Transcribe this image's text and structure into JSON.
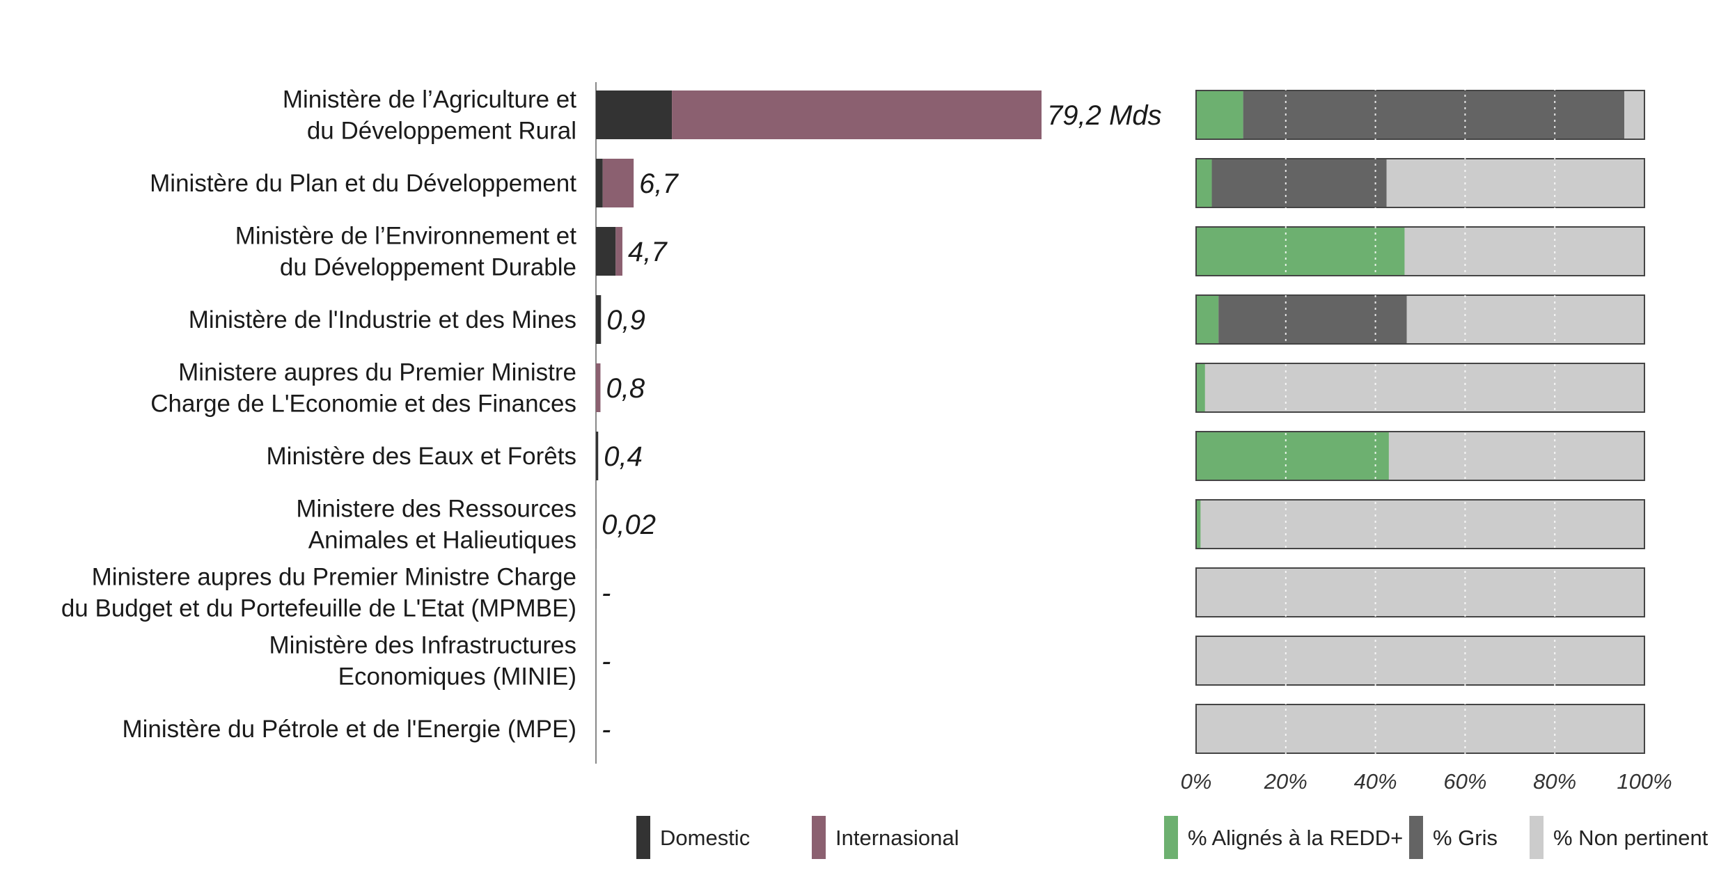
{
  "chart_data": [
    {
      "type": "bar",
      "orientation": "horizontal",
      "stacked": true,
      "categories": [
        [
          "Ministère de l’Agriculture et",
          "du Développement Rural"
        ],
        [
          "Ministère du Plan et du Développement"
        ],
        [
          "Ministère de l’Environnement et",
          "du Développement Durable"
        ],
        [
          "Ministère de l'Industrie et des Mines"
        ],
        [
          "Ministere aupres du Premier Ministre",
          "Charge de L'Economie et des Finances"
        ],
        [
          "Ministère des Eaux et Forêts"
        ],
        [
          "Ministere des Ressources",
          "Animales et Halieutiques"
        ],
        [
          "Ministere aupres du Premier Ministre Charge",
          "du Budget et du Portefeuille de L'Etat (MPMBE)"
        ],
        [
          "Ministère des Infrastructures",
          "Economiques (MINIE)"
        ],
        [
          "Ministère du Pétrole et de l'Energie (MPE)"
        ]
      ],
      "series": [
        {
          "name": "Domestic",
          "color": "#333333",
          "values": [
            13.5,
            1.2,
            3.5,
            0.9,
            0.0,
            0.4,
            0.02,
            0,
            0,
            0
          ]
        },
        {
          "name": "Internasional",
          "color": "#8b6070",
          "values": [
            65.7,
            5.5,
            1.2,
            0.0,
            0.8,
            0.0,
            0.0,
            0,
            0,
            0
          ]
        }
      ],
      "data_labels": [
        "79,2 Mds",
        "6,7",
        "4,7",
        "0,9",
        "0,8",
        "0,4",
        "0,02",
        "-",
        "-",
        "-"
      ],
      "xlim": [
        0,
        79.2
      ]
    },
    {
      "type": "bar",
      "orientation": "horizontal",
      "stacked": true,
      "percent": true,
      "series": [
        {
          "name": "% Alignés à la REDD+",
          "color": "#6db070",
          "values": [
            10.5,
            3.5,
            46.5,
            5,
            2,
            43,
            1,
            0,
            0,
            0
          ]
        },
        {
          "name": "% Gris",
          "color": "#646464",
          "values": [
            85,
            39,
            0,
            42,
            0,
            0,
            0,
            0,
            0,
            0
          ]
        },
        {
          "name": "% Non pertinent",
          "color": "#cccccc",
          "values": [
            4.5,
            57.5,
            53.5,
            53,
            98,
            57,
            99,
            100,
            100,
            100
          ]
        }
      ],
      "x_ticks": [
        "0%",
        "20%",
        "40%",
        "60%",
        "80%",
        "100%"
      ],
      "xlim": [
        0,
        100
      ],
      "grid": true
    }
  ],
  "legend": [
    {
      "name": "Domestic",
      "color": "#333333"
    },
    {
      "name": "Internasional",
      "color": "#8b6070"
    },
    {
      "name": "% Alignés à la REDD+",
      "color": "#6db070"
    },
    {
      "name": "% Gris",
      "color": "#646464"
    },
    {
      "name": "% Non pertinent",
      "color": "#cccccc"
    }
  ]
}
